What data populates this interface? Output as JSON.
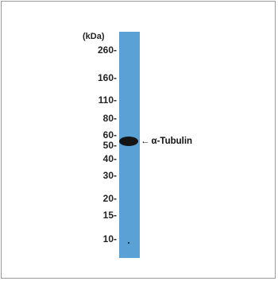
{
  "blot": {
    "unit_label": "(kDa)",
    "markers": [
      {
        "label": "260-",
        "kda": 260
      },
      {
        "label": "160-",
        "kda": 160
      },
      {
        "label": "110-",
        "kda": 110
      },
      {
        "label": "80-",
        "kda": 80
      },
      {
        "label": "60-",
        "kda": 60
      },
      {
        "label": "50-",
        "kda": 50
      },
      {
        "label": "40-",
        "kda": 40
      },
      {
        "label": "30-",
        "kda": 30
      },
      {
        "label": "20-",
        "kda": 20
      },
      {
        "label": "15-",
        "kda": 15
      },
      {
        "label": "10-",
        "kda": 10
      }
    ],
    "band": {
      "label": "α-Tubulin",
      "arrow": "←",
      "kda": 52
    },
    "colors": {
      "lane": "#5aa2d6",
      "band": "#151515",
      "frame": "#9a9a9a"
    }
  }
}
